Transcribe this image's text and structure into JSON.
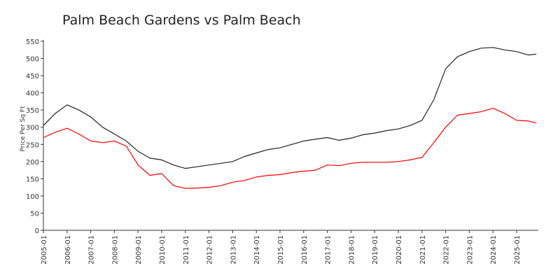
{
  "chart_data": {
    "type": "line",
    "title": "Palm Beach Gardens vs Palm Beach",
    "xlabel": "",
    "ylabel": "Price Per Sq Ft",
    "ylim": [
      0,
      550
    ],
    "yticks": [
      0,
      50,
      100,
      150,
      200,
      250,
      300,
      350,
      400,
      450,
      500,
      550
    ],
    "xticks": [
      "2005-01",
      "2006-01",
      "2007-01",
      "2008-01",
      "2009-01",
      "2010-01",
      "2011-01",
      "2012-01",
      "2013-01",
      "2014-01",
      "2015-01",
      "2016-01",
      "2017-01",
      "2018-01",
      "2019-01",
      "2020-01",
      "2021-01",
      "2022-01",
      "2023-01",
      "2024-01",
      "2025-01"
    ],
    "x": [
      "2005-01",
      "2005-07",
      "2006-01",
      "2006-07",
      "2007-01",
      "2007-07",
      "2008-01",
      "2008-07",
      "2009-01",
      "2009-07",
      "2010-01",
      "2010-07",
      "2011-01",
      "2011-07",
      "2012-01",
      "2012-07",
      "2013-01",
      "2013-07",
      "2014-01",
      "2014-07",
      "2015-01",
      "2015-07",
      "2016-01",
      "2016-07",
      "2017-01",
      "2017-07",
      "2018-01",
      "2018-07",
      "2019-01",
      "2019-07",
      "2020-01",
      "2020-07",
      "2021-01",
      "2021-07",
      "2022-01",
      "2022-07",
      "2023-01",
      "2023-07",
      "2024-01",
      "2024-07",
      "2025-01",
      "2025-07",
      "2025-11"
    ],
    "grid": false,
    "legend": "none",
    "series": [
      {
        "color": "#222222",
        "values": [
          305,
          340,
          365,
          350,
          330,
          300,
          280,
          260,
          230,
          210,
          205,
          190,
          180,
          185,
          190,
          195,
          200,
          215,
          225,
          235,
          240,
          250,
          260,
          265,
          270,
          262,
          268,
          278,
          283,
          290,
          295,
          305,
          320,
          380,
          470,
          505,
          520,
          530,
          532,
          525,
          520,
          510,
          513
        ]
      },
      {
        "color": "#ff0000",
        "values": [
          270,
          285,
          297,
          280,
          260,
          255,
          260,
          245,
          190,
          160,
          165,
          130,
          122,
          123,
          125,
          130,
          140,
          145,
          155,
          160,
          162,
          168,
          172,
          175,
          190,
          188,
          195,
          198,
          198,
          198,
          200,
          205,
          212,
          255,
          300,
          335,
          340,
          345,
          355,
          340,
          320,
          318,
          312
        ]
      }
    ]
  }
}
